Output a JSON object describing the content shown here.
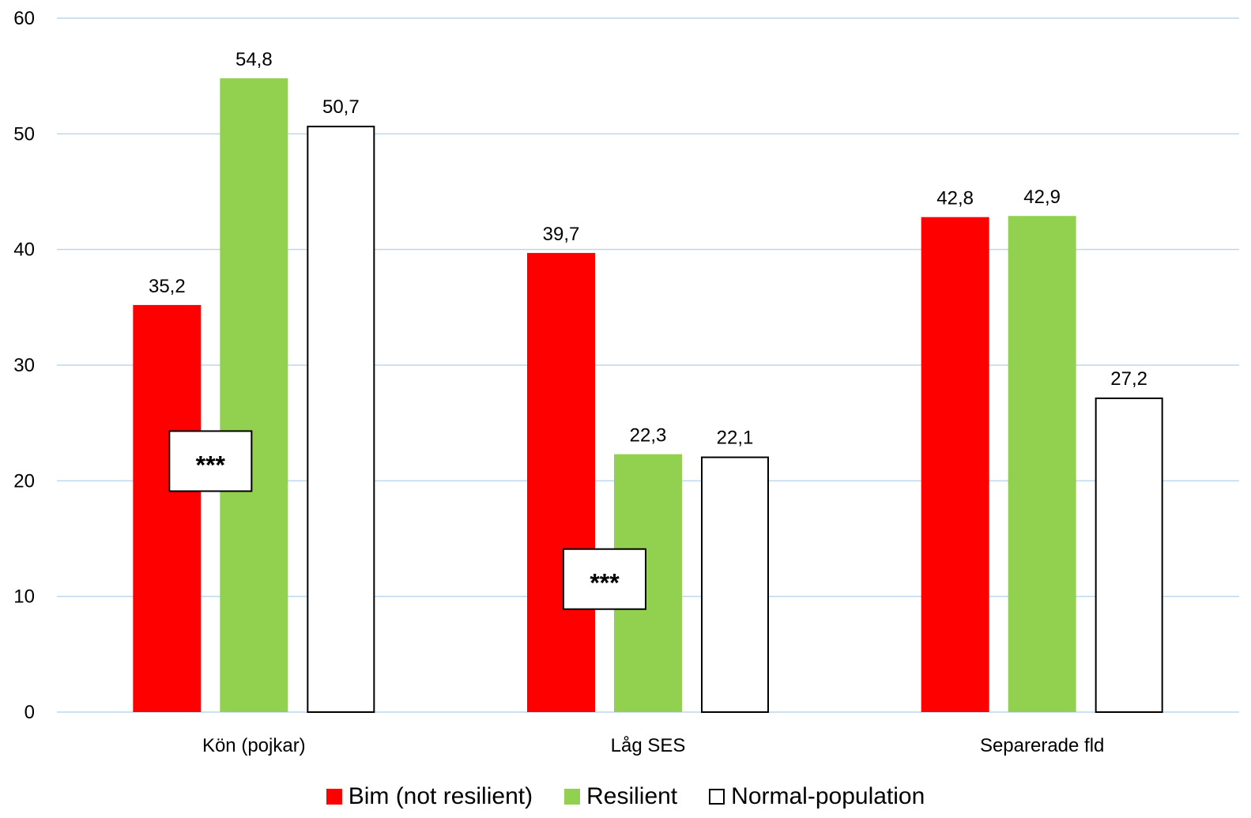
{
  "chart_data": {
    "type": "bar",
    "categories": [
      "Kön (pojkar)",
      "Låg SES",
      "Separerade fld"
    ],
    "series": [
      {
        "name": "Bim (not resilient)",
        "values": [
          35.2,
          39.7,
          42.8
        ],
        "labels": [
          "35,2",
          "39,7",
          "42,8"
        ],
        "color": "#ff0000",
        "stroke": "#ff0000"
      },
      {
        "name": "Resilient",
        "values": [
          54.8,
          22.3,
          42.9
        ],
        "labels": [
          "54,8",
          "22,3",
          "42,9"
        ],
        "color": "#92d050",
        "stroke": "#92d050"
      },
      {
        "name": "Normal-population",
        "values": [
          50.7,
          22.1,
          27.2
        ],
        "labels": [
          "50,7",
          "22,1",
          "27,2"
        ],
        "color": "#ffffff",
        "stroke": "#000000"
      }
    ],
    "ylim": [
      0,
      60
    ],
    "yticks": [
      "0",
      "10",
      "20",
      "30",
      "40",
      "50",
      "60"
    ],
    "grid": true,
    "gridColor": "#bdd7ee",
    "legend_position": "bottom",
    "annotations": [
      {
        "text": "***",
        "category": 0,
        "y": 21.7
      },
      {
        "text": "***",
        "category": 1,
        "y": 11.5
      }
    ]
  }
}
